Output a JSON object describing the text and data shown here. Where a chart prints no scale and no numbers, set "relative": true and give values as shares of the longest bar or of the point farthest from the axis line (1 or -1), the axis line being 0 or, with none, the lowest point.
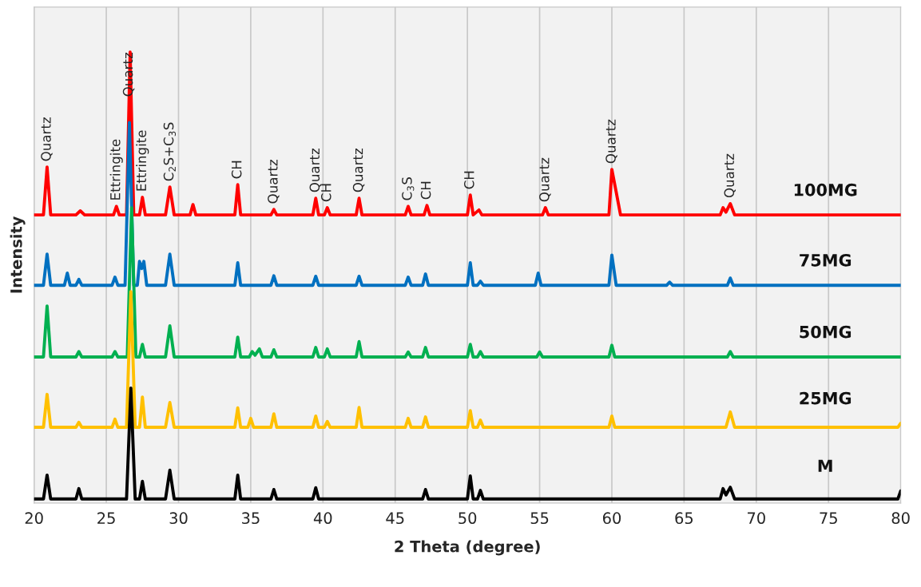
{
  "chart_data": {
    "type": "line",
    "xlabel": "2 Theta (degree)",
    "ylabel": "Intensity",
    "relative": true,
    "grid": "x",
    "xlim": [
      20,
      80
    ],
    "xticks": [
      20,
      25,
      30,
      35,
      40,
      45,
      50,
      55,
      60,
      65,
      70,
      75,
      80
    ],
    "series": [
      {
        "name": "100MG",
        "color": "#ff0000",
        "x": [
          20,
          20.65,
          20.9,
          21.15,
          22.9,
          23.2,
          23.5,
          25.5,
          25.7,
          25.9,
          26.4,
          26.65,
          26.9,
          27.3,
          27.5,
          27.7,
          29.1,
          29.4,
          29.7,
          30.8,
          31.0,
          31.2,
          33.9,
          34.1,
          34.3,
          36.4,
          36.6,
          36.8,
          39.3,
          39.5,
          39.7,
          40.1,
          40.3,
          40.5,
          42.3,
          42.5,
          42.7,
          45.7,
          45.9,
          46.1,
          47.0,
          47.2,
          47.4,
          50.0,
          50.2,
          50.4,
          50.8,
          51.0,
          55.2,
          55.4,
          55.6,
          59.8,
          60.0,
          60.3,
          60.6,
          67.5,
          67.7,
          67.9,
          68.2,
          68.5,
          80
        ],
        "values": [
          0.639,
          0.639,
          0.745,
          0.639,
          0.639,
          0.648,
          0.639,
          0.639,
          0.658,
          0.639,
          0.639,
          1.0,
          0.639,
          0.639,
          0.678,
          0.639,
          0.639,
          0.701,
          0.639,
          0.639,
          0.662,
          0.639,
          0.639,
          0.706,
          0.639,
          0.639,
          0.651,
          0.639,
          0.639,
          0.676,
          0.639,
          0.639,
          0.655,
          0.639,
          0.639,
          0.676,
          0.639,
          0.639,
          0.658,
          0.639,
          0.639,
          0.66,
          0.639,
          0.639,
          0.683,
          0.639,
          0.65,
          0.639,
          0.639,
          0.655,
          0.639,
          0.639,
          0.74,
          0.69,
          0.639,
          0.639,
          0.655,
          0.645,
          0.664,
          0.639,
          0.639
        ]
      },
      {
        "name": "75MG",
        "color": "#0070c0",
        "x": [
          20,
          20.65,
          20.9,
          21.15,
          22.1,
          22.3,
          22.5,
          22.9,
          23.1,
          23.3,
          25.4,
          25.6,
          25.8,
          26.3,
          26.6,
          26.9,
          27.15,
          27.3,
          27.45,
          27.6,
          27.8,
          29.1,
          29.4,
          29.7,
          33.9,
          34.1,
          34.3,
          36.4,
          36.6,
          36.8,
          39.3,
          39.5,
          39.7,
          42.3,
          42.5,
          42.7,
          45.7,
          45.9,
          46.1,
          46.9,
          47.1,
          47.3,
          50.0,
          50.2,
          50.4,
          50.7,
          50.9,
          51.1,
          54.7,
          54.9,
          55.1,
          59.8,
          60.0,
          60.3,
          63.8,
          64.0,
          64.2,
          68.0,
          68.2,
          68.4,
          80
        ],
        "values": [
          0.483,
          0.483,
          0.552,
          0.483,
          0.483,
          0.51,
          0.483,
          0.483,
          0.496,
          0.483,
          0.483,
          0.501,
          0.483,
          0.483,
          0.844,
          0.483,
          0.483,
          0.536,
          0.52,
          0.536,
          0.483,
          0.483,
          0.552,
          0.483,
          0.483,
          0.533,
          0.483,
          0.483,
          0.504,
          0.483,
          0.483,
          0.503,
          0.483,
          0.483,
          0.503,
          0.483,
          0.483,
          0.501,
          0.483,
          0.483,
          0.508,
          0.483,
          0.483,
          0.533,
          0.483,
          0.483,
          0.492,
          0.483,
          0.483,
          0.51,
          0.483,
          0.483,
          0.55,
          0.483,
          0.483,
          0.49,
          0.483,
          0.483,
          0.499,
          0.483,
          0.483
        ]
      },
      {
        "name": "50MG",
        "color": "#00b050",
        "x": [
          20,
          20.65,
          20.9,
          21.15,
          22.9,
          23.1,
          23.3,
          25.4,
          25.6,
          25.8,
          26.45,
          26.75,
          27.05,
          27.3,
          27.5,
          27.7,
          29.1,
          29.4,
          29.7,
          33.9,
          34.1,
          34.3,
          34.9,
          35.1,
          35.3,
          35.6,
          35.8,
          36.4,
          36.6,
          36.8,
          39.3,
          39.5,
          39.7,
          40.1,
          40.3,
          40.5,
          42.3,
          42.5,
          42.7,
          45.7,
          45.9,
          46.1,
          46.9,
          47.1,
          47.3,
          50.0,
          50.2,
          50.4,
          50.7,
          50.9,
          51.1,
          54.8,
          55.0,
          55.2,
          59.8,
          60.0,
          60.2,
          68.0,
          68.2,
          68.4,
          80
        ],
        "values": [
          0.324,
          0.324,
          0.437,
          0.324,
          0.324,
          0.336,
          0.324,
          0.324,
          0.336,
          0.324,
          0.324,
          0.655,
          0.324,
          0.324,
          0.352,
          0.324,
          0.324,
          0.393,
          0.324,
          0.324,
          0.368,
          0.324,
          0.324,
          0.336,
          0.328,
          0.342,
          0.324,
          0.324,
          0.34,
          0.324,
          0.324,
          0.345,
          0.324,
          0.324,
          0.342,
          0.324,
          0.324,
          0.358,
          0.324,
          0.324,
          0.335,
          0.324,
          0.324,
          0.345,
          0.324,
          0.324,
          0.352,
          0.324,
          0.324,
          0.336,
          0.324,
          0.324,
          0.335,
          0.324,
          0.324,
          0.35,
          0.324,
          0.324,
          0.336,
          0.324,
          0.324
        ]
      },
      {
        "name": "25MG",
        "color": "#ffc000",
        "x": [
          20,
          20.65,
          20.9,
          21.15,
          22.9,
          23.1,
          23.3,
          25.4,
          25.6,
          25.8,
          26.4,
          26.7,
          27.0,
          27.3,
          27.5,
          27.7,
          29.1,
          29.4,
          29.7,
          33.9,
          34.1,
          34.3,
          34.8,
          35.0,
          35.2,
          36.4,
          36.6,
          36.8,
          39.3,
          39.5,
          39.7,
          40.1,
          40.3,
          40.5,
          42.3,
          42.5,
          42.7,
          45.7,
          45.9,
          46.1,
          46.9,
          47.1,
          47.3,
          50.0,
          50.2,
          50.4,
          50.7,
          50.9,
          51.1,
          59.8,
          60.0,
          60.2,
          67.9,
          68.2,
          68.5,
          79.8,
          80
        ],
        "values": [
          0.168,
          0.168,
          0.241,
          0.168,
          0.168,
          0.179,
          0.168,
          0.168,
          0.186,
          0.168,
          0.168,
          0.469,
          0.168,
          0.168,
          0.235,
          0.168,
          0.168,
          0.223,
          0.168,
          0.168,
          0.211,
          0.168,
          0.168,
          0.188,
          0.168,
          0.168,
          0.198,
          0.168,
          0.168,
          0.193,
          0.168,
          0.168,
          0.181,
          0.168,
          0.168,
          0.212,
          0.168,
          0.168,
          0.188,
          0.168,
          0.168,
          0.191,
          0.168,
          0.168,
          0.205,
          0.168,
          0.168,
          0.184,
          0.168,
          0.168,
          0.193,
          0.168,
          0.168,
          0.202,
          0.168,
          0.168,
          0.177
        ]
      },
      {
        "name": "M",
        "color": "#000000",
        "x": [
          20,
          20.65,
          20.9,
          21.15,
          22.9,
          23.1,
          23.3,
          26.4,
          26.7,
          27.0,
          27.3,
          27.5,
          27.7,
          29.1,
          29.4,
          29.7,
          33.9,
          34.1,
          34.3,
          36.4,
          36.6,
          36.8,
          39.3,
          39.5,
          39.7,
          46.9,
          47.1,
          47.3,
          50.0,
          50.2,
          50.4,
          50.7,
          50.9,
          51.1,
          67.5,
          67.7,
          67.9,
          68.2,
          68.5,
          79.8,
          80
        ],
        "values": [
          0.009,
          0.009,
          0.062,
          0.009,
          0.009,
          0.032,
          0.009,
          0.009,
          0.255,
          0.009,
          0.009,
          0.048,
          0.009,
          0.009,
          0.073,
          0.009,
          0.009,
          0.062,
          0.009,
          0.009,
          0.03,
          0.009,
          0.009,
          0.034,
          0.009,
          0.009,
          0.03,
          0.009,
          0.009,
          0.06,
          0.009,
          0.009,
          0.028,
          0.009,
          0.009,
          0.032,
          0.018,
          0.035,
          0.009,
          0.009,
          0.027
        ]
      }
    ],
    "annotations": [
      {
        "text": "Quartz",
        "x": 20.9,
        "y": 0.745
      },
      {
        "text": "Ettringite",
        "x": 25.7,
        "y": 0.658
      },
      {
        "text": "Quartz",
        "x": 26.65,
        "y": 1.0
      },
      {
        "text": "Ettringite",
        "x": 27.5,
        "y": 0.678
      },
      {
        "text": "C$_{2}$S+C$_{3}$S",
        "x": 29.4,
        "y": 0.701
      },
      {
        "text": "CH",
        "x": 34.1,
        "y": 0.706
      },
      {
        "text": "Quartz",
        "x": 36.6,
        "y": 0.651
      },
      {
        "text": "Quartz",
        "x": 39.5,
        "y": 0.676
      },
      {
        "text": "CH",
        "x": 40.3,
        "y": 0.655
      },
      {
        "text": "Quartz",
        "x": 42.5,
        "y": 0.676
      },
      {
        "text": "C$_{3}$S",
        "x": 45.9,
        "y": 0.658
      },
      {
        "text": "CH",
        "x": 47.2,
        "y": 0.66
      },
      {
        "text": "CH",
        "x": 50.2,
        "y": 0.683
      },
      {
        "text": "Quartz",
        "x": 55.4,
        "y": 0.655
      },
      {
        "text": "Quartz",
        "x": 60.0,
        "y": 0.74
      },
      {
        "text": "Quartz",
        "x": 68.2,
        "y": 0.664
      }
    ]
  }
}
